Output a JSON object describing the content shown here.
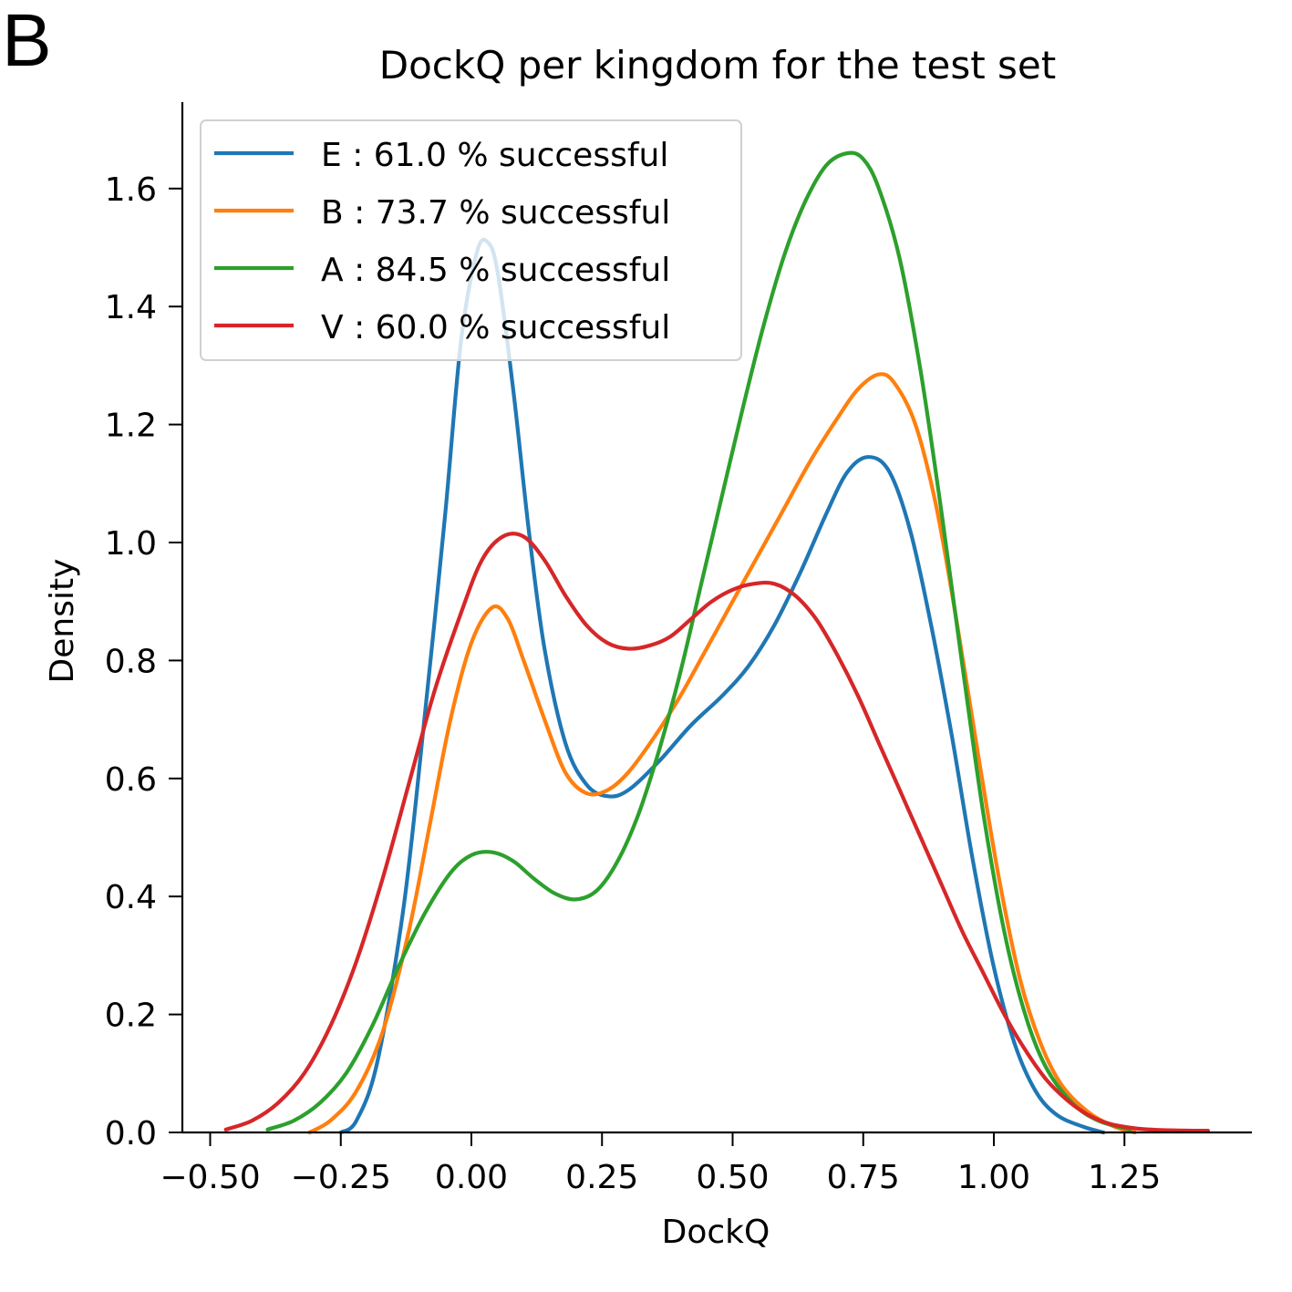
{
  "panel_label": "B",
  "chart_data": {
    "type": "line",
    "title": "DockQ per kingdom for the test set",
    "xlabel": "DockQ",
    "ylabel": "Density",
    "xlim": [
      -0.55,
      1.5
    ],
    "ylim": [
      0.0,
      1.75
    ],
    "xticks": [
      -0.5,
      -0.25,
      0.0,
      0.25,
      0.5,
      0.75,
      1.0,
      1.25
    ],
    "xtick_labels": [
      "−0.50",
      "−0.25",
      "0.00",
      "0.25",
      "0.50",
      "0.75",
      "1.00",
      "1.25"
    ],
    "yticks": [
      0.0,
      0.2,
      0.4,
      0.6,
      0.8,
      1.0,
      1.2,
      1.4,
      1.6
    ],
    "ytick_labels": [
      "0.0",
      "0.2",
      "0.4",
      "0.6",
      "0.8",
      "1.0",
      "1.2",
      "1.4",
      "1.6"
    ],
    "grid": false,
    "legend_position": "top-left",
    "series": [
      {
        "name": "E : 61.0 % successful",
        "color": "#1f77b4",
        "points": [
          [
            -0.25,
            0.0
          ],
          [
            -0.22,
            0.02
          ],
          [
            -0.18,
            0.12
          ],
          [
            -0.13,
            0.38
          ],
          [
            -0.09,
            0.7
          ],
          [
            -0.05,
            1.05
          ],
          [
            -0.02,
            1.34
          ],
          [
            0.01,
            1.49
          ],
          [
            0.03,
            1.51
          ],
          [
            0.05,
            1.46
          ],
          [
            0.08,
            1.26
          ],
          [
            0.11,
            1.02
          ],
          [
            0.14,
            0.82
          ],
          [
            0.18,
            0.66
          ],
          [
            0.22,
            0.59
          ],
          [
            0.26,
            0.57
          ],
          [
            0.3,
            0.58
          ],
          [
            0.36,
            0.63
          ],
          [
            0.42,
            0.69
          ],
          [
            0.48,
            0.74
          ],
          [
            0.53,
            0.79
          ],
          [
            0.58,
            0.86
          ],
          [
            0.63,
            0.95
          ],
          [
            0.68,
            1.05
          ],
          [
            0.72,
            1.12
          ],
          [
            0.76,
            1.145
          ],
          [
            0.8,
            1.12
          ],
          [
            0.84,
            1.02
          ],
          [
            0.88,
            0.86
          ],
          [
            0.92,
            0.67
          ],
          [
            0.96,
            0.46
          ],
          [
            1.0,
            0.28
          ],
          [
            1.04,
            0.15
          ],
          [
            1.08,
            0.07
          ],
          [
            1.12,
            0.03
          ],
          [
            1.17,
            0.01
          ],
          [
            1.21,
            0.0
          ]
        ]
      },
      {
        "name": "B : 73.7 % successful",
        "color": "#ff7f0e",
        "points": [
          [
            -0.31,
            0.0
          ],
          [
            -0.27,
            0.02
          ],
          [
            -0.22,
            0.07
          ],
          [
            -0.17,
            0.17
          ],
          [
            -0.12,
            0.34
          ],
          [
            -0.08,
            0.52
          ],
          [
            -0.04,
            0.7
          ],
          [
            0.0,
            0.83
          ],
          [
            0.04,
            0.89
          ],
          [
            0.07,
            0.87
          ],
          [
            0.1,
            0.8
          ],
          [
            0.14,
            0.7
          ],
          [
            0.18,
            0.61
          ],
          [
            0.22,
            0.575
          ],
          [
            0.26,
            0.58
          ],
          [
            0.3,
            0.61
          ],
          [
            0.35,
            0.67
          ],
          [
            0.4,
            0.74
          ],
          [
            0.45,
            0.82
          ],
          [
            0.5,
            0.9
          ],
          [
            0.55,
            0.98
          ],
          [
            0.6,
            1.06
          ],
          [
            0.65,
            1.14
          ],
          [
            0.7,
            1.21
          ],
          [
            0.74,
            1.26
          ],
          [
            0.78,
            1.285
          ],
          [
            0.81,
            1.27
          ],
          [
            0.85,
            1.2
          ],
          [
            0.89,
            1.06
          ],
          [
            0.93,
            0.86
          ],
          [
            0.97,
            0.64
          ],
          [
            1.01,
            0.43
          ],
          [
            1.05,
            0.26
          ],
          [
            1.09,
            0.15
          ],
          [
            1.13,
            0.08
          ],
          [
            1.18,
            0.035
          ],
          [
            1.23,
            0.01
          ],
          [
            1.27,
            0.0
          ]
        ]
      },
      {
        "name": "A : 84.5 % successful",
        "color": "#2ca02c",
        "points": [
          [
            -0.39,
            0.005
          ],
          [
            -0.34,
            0.02
          ],
          [
            -0.29,
            0.05
          ],
          [
            -0.24,
            0.1
          ],
          [
            -0.19,
            0.18
          ],
          [
            -0.14,
            0.28
          ],
          [
            -0.09,
            0.37
          ],
          [
            -0.04,
            0.44
          ],
          [
            0.0,
            0.47
          ],
          [
            0.04,
            0.475
          ],
          [
            0.08,
            0.46
          ],
          [
            0.12,
            0.43
          ],
          [
            0.16,
            0.405
          ],
          [
            0.2,
            0.395
          ],
          [
            0.24,
            0.41
          ],
          [
            0.28,
            0.46
          ],
          [
            0.32,
            0.54
          ],
          [
            0.36,
            0.65
          ],
          [
            0.4,
            0.78
          ],
          [
            0.44,
            0.93
          ],
          [
            0.48,
            1.08
          ],
          [
            0.52,
            1.23
          ],
          [
            0.56,
            1.37
          ],
          [
            0.6,
            1.49
          ],
          [
            0.64,
            1.58
          ],
          [
            0.68,
            1.64
          ],
          [
            0.72,
            1.66
          ],
          [
            0.75,
            1.65
          ],
          [
            0.78,
            1.6
          ],
          [
            0.82,
            1.48
          ],
          [
            0.86,
            1.29
          ],
          [
            0.9,
            1.05
          ],
          [
            0.94,
            0.79
          ],
          [
            0.98,
            0.54
          ],
          [
            1.02,
            0.34
          ],
          [
            1.06,
            0.2
          ],
          [
            1.1,
            0.11
          ],
          [
            1.15,
            0.05
          ],
          [
            1.2,
            0.02
          ],
          [
            1.26,
            0.005
          ]
        ]
      },
      {
        "name": "V : 60.0 % successful",
        "color": "#d62728",
        "points": [
          [
            -0.47,
            0.005
          ],
          [
            -0.42,
            0.02
          ],
          [
            -0.37,
            0.05
          ],
          [
            -0.32,
            0.1
          ],
          [
            -0.27,
            0.18
          ],
          [
            -0.22,
            0.29
          ],
          [
            -0.17,
            0.43
          ],
          [
            -0.12,
            0.59
          ],
          [
            -0.07,
            0.75
          ],
          [
            -0.02,
            0.88
          ],
          [
            0.02,
            0.97
          ],
          [
            0.06,
            1.01
          ],
          [
            0.1,
            1.01
          ],
          [
            0.14,
            0.97
          ],
          [
            0.18,
            0.91
          ],
          [
            0.22,
            0.86
          ],
          [
            0.26,
            0.83
          ],
          [
            0.3,
            0.82
          ],
          [
            0.34,
            0.825
          ],
          [
            0.38,
            0.84
          ],
          [
            0.42,
            0.87
          ],
          [
            0.46,
            0.9
          ],
          [
            0.5,
            0.92
          ],
          [
            0.54,
            0.93
          ],
          [
            0.58,
            0.93
          ],
          [
            0.62,
            0.91
          ],
          [
            0.66,
            0.87
          ],
          [
            0.7,
            0.81
          ],
          [
            0.74,
            0.74
          ],
          [
            0.78,
            0.66
          ],
          [
            0.82,
            0.58
          ],
          [
            0.86,
            0.5
          ],
          [
            0.9,
            0.42
          ],
          [
            0.94,
            0.34
          ],
          [
            0.98,
            0.27
          ],
          [
            1.02,
            0.2
          ],
          [
            1.06,
            0.14
          ],
          [
            1.1,
            0.09
          ],
          [
            1.14,
            0.055
          ],
          [
            1.18,
            0.03
          ],
          [
            1.22,
            0.015
          ],
          [
            1.27,
            0.007
          ],
          [
            1.32,
            0.004
          ],
          [
            1.38,
            0.003
          ],
          [
            1.41,
            0.003
          ]
        ]
      }
    ]
  }
}
